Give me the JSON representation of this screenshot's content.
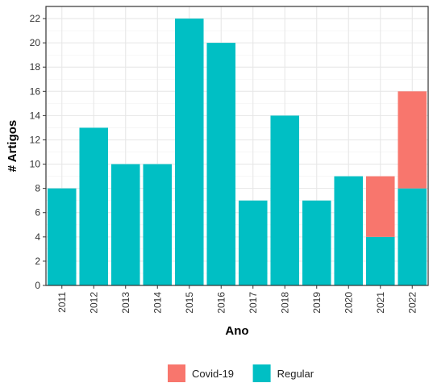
{
  "chart_data": {
    "type": "bar",
    "stacked": true,
    "categories": [
      "2011",
      "2012",
      "2013",
      "2014",
      "2015",
      "2016",
      "2017",
      "2018",
      "2019",
      "2020",
      "2021",
      "2022"
    ],
    "series": [
      {
        "name": "Regular",
        "color": "#00BFC4",
        "values": [
          8,
          13,
          10,
          10,
          22,
          20,
          7,
          14,
          7,
          9,
          4,
          8
        ]
      },
      {
        "name": "Covid-19",
        "color": "#F8766D",
        "values": [
          0,
          0,
          0,
          0,
          0,
          0,
          0,
          0,
          0,
          0,
          5,
          8
        ]
      }
    ],
    "legend_order": [
      "Covid-19",
      "Regular"
    ],
    "xlabel": "Ano",
    "ylabel": "# Artigos",
    "ylim": [
      0,
      23
    ],
    "yticks": [
      0,
      2,
      4,
      6,
      8,
      10,
      12,
      14,
      16,
      18,
      20,
      22
    ],
    "grid": true,
    "legend_position": "bottom"
  }
}
